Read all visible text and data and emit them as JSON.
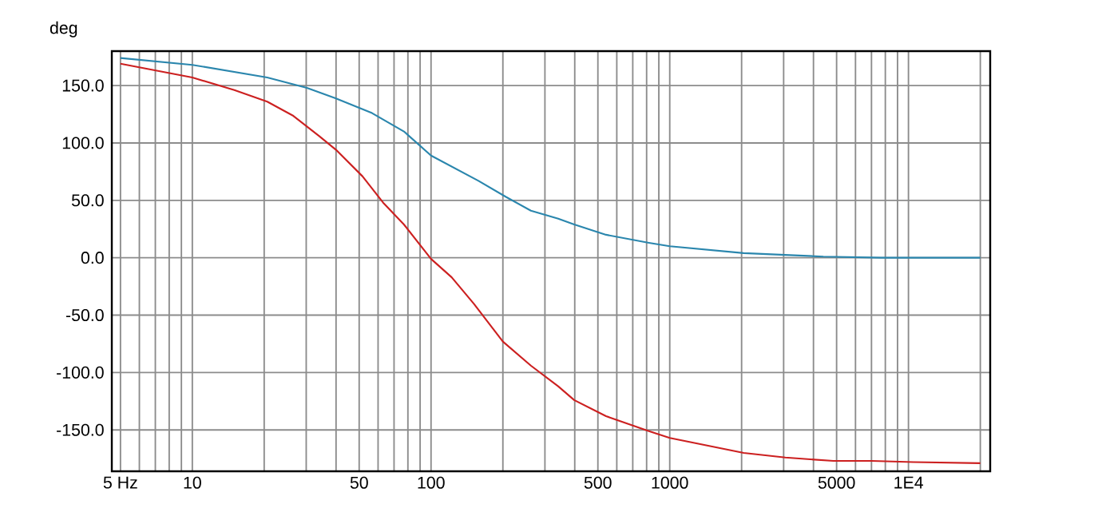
{
  "chart_data": {
    "type": "line",
    "ylabel": "deg",
    "log": "x",
    "grid": true,
    "xlim": [
      4.6,
      22000
    ],
    "ylim": [
      -186,
      180
    ],
    "xticks": [
      {
        "value": 5,
        "label": "5 Hz"
      },
      {
        "value": 6,
        "label": null
      },
      {
        "value": 7,
        "label": null
      },
      {
        "value": 8,
        "label": null
      },
      {
        "value": 9,
        "label": null
      },
      10,
      {
        "value": 20,
        "label": null
      },
      {
        "value": 30,
        "label": null
      },
      {
        "value": 40,
        "label": null
      },
      50,
      {
        "value": 60,
        "label": null
      },
      {
        "value": 70,
        "label": null
      },
      {
        "value": 80,
        "label": null
      },
      {
        "value": 90,
        "label": null
      },
      100,
      {
        "value": 200,
        "label": null
      },
      {
        "value": 300,
        "label": null
      },
      {
        "value": 400,
        "label": null
      },
      500,
      {
        "value": 600,
        "label": null
      },
      {
        "value": 700,
        "label": null
      },
      {
        "value": 800,
        "label": null
      },
      {
        "value": 900,
        "label": null
      },
      1000,
      {
        "value": 2000,
        "label": null
      },
      {
        "value": 3000,
        "label": null
      },
      {
        "value": 4000,
        "label": null
      },
      5000,
      {
        "value": 6000,
        "label": null
      },
      {
        "value": 7000,
        "label": null
      },
      {
        "value": 8000,
        "label": null
      },
      {
        "value": 9000,
        "label": null
      },
      {
        "value": 10000,
        "label": "1E4"
      },
      {
        "value": 20000,
        "label": null
      }
    ],
    "yticks": [
      {
        "value": -150,
        "label": "-150.0"
      },
      {
        "value": -100,
        "label": "-100.0"
      },
      {
        "value": -50,
        "label": "-50.0"
      },
      {
        "value": 0,
        "label": "0.0"
      },
      {
        "value": 50,
        "label": "50.0"
      },
      {
        "value": 100,
        "label": "100.0"
      },
      {
        "value": 150,
        "label": "150.0"
      }
    ],
    "series": [
      {
        "color": "#2a86ad",
        "x": [
          5,
          10,
          20.6,
          30.2,
          39.8,
          56.6,
          77,
          100,
          158,
          206,
          262,
          341,
          398,
          541,
          818,
          1000,
          2040,
          4400,
          7700,
          20000
        ],
        "values": [
          174,
          168,
          157,
          148,
          139,
          126,
          110,
          89,
          67,
          53,
          41,
          34,
          29,
          20,
          13,
          10,
          4,
          1,
          0,
          0
        ]
      },
      {
        "color": "#cc2020",
        "x": [
          5,
          10,
          15,
          20.6,
          26.3,
          34,
          40,
          51.6,
          63,
          77,
          100,
          122,
          151,
          200,
          262,
          341,
          398,
          541,
          818,
          1000,
          2040,
          3050,
          4850,
          7000,
          10500,
          20000
        ],
        "values": [
          169,
          157,
          146,
          136,
          124,
          106,
          94,
          71,
          48,
          29,
          -1,
          -17,
          -40,
          -73,
          -94,
          -112,
          -124,
          -138,
          -151,
          -157,
          -170,
          -174,
          -177,
          -177,
          -178,
          -179
        ]
      }
    ]
  }
}
